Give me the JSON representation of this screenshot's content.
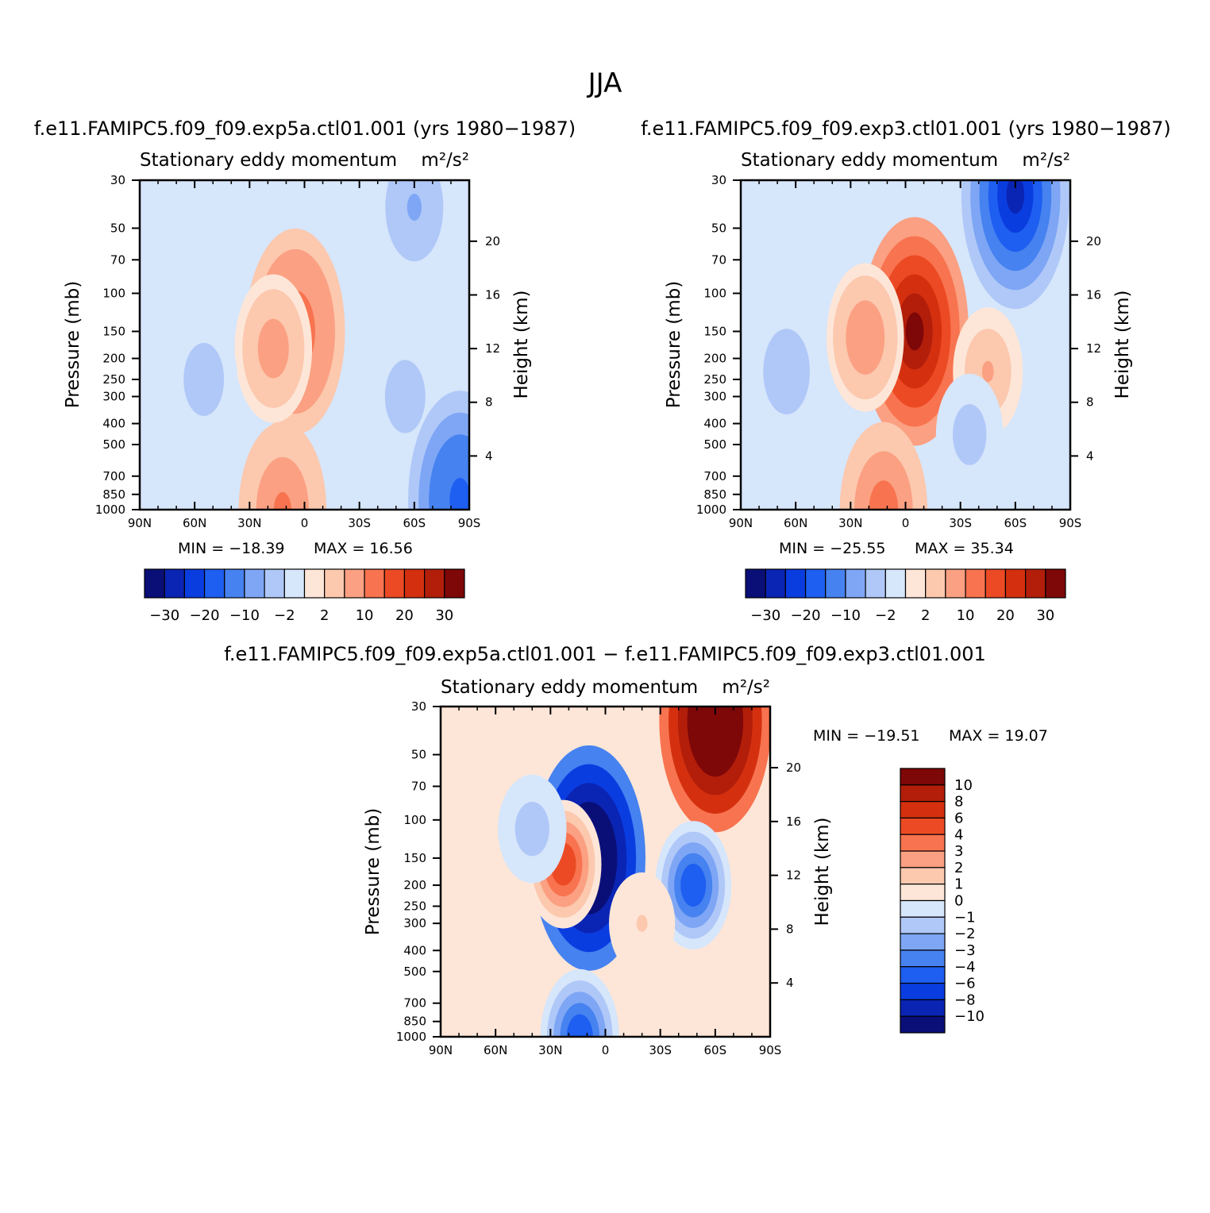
{
  "figure": {
    "title": "JJA",
    "diff_title": "f.e11.FAMIPC5.f09_f09.exp5a.ctl01.001  −  f.e11.FAMIPC5.f09_f09.exp3.ctl01.001"
  },
  "chart_data": [
    {
      "type": "heatmap",
      "case_title": "f.e11.FAMIPC5.f09_f09.exp5a.ctl01.001  (yrs  1980−1987)",
      "title": "Stationary  eddy  momentum",
      "units": "m²/s²",
      "ylabel": "Pressure  (mb)",
      "y2label": "Height  (km)",
      "x_ticks": [
        "90N",
        "60N",
        "30N",
        "0",
        "30S",
        "60S",
        "90S"
      ],
      "y_ticks": [
        "30",
        "50",
        "70",
        "100",
        "150",
        "200",
        "250",
        "300",
        "400",
        "500",
        "700",
        "850",
        "1000"
      ],
      "y2_ticks": [
        "20",
        "16",
        "12",
        "8",
        "4"
      ],
      "y_scale": "log",
      "min_label": "MIN  =  −18.39",
      "max_label": "MAX  =    16.56",
      "min": -18.39,
      "max": 16.56,
      "colorbar_labels": [
        "−30",
        "−20",
        "−10",
        "−2",
        "2",
        "10",
        "20",
        "30"
      ],
      "colorbar_levels": [
        -30,
        -25,
        -20,
        -15,
        -10,
        -5,
        -2,
        0,
        2,
        5,
        10,
        15,
        20,
        25,
        30
      ],
      "colorbar_orientation": "horizontal",
      "features": [
        {
          "lat": 5,
          "p": 150,
          "value": 16.56
        },
        {
          "lat": 17,
          "p": 180,
          "value": 8
        },
        {
          "lat": -60,
          "p": 40,
          "value": -6
        },
        {
          "lat": -55,
          "p": 300,
          "value": -4
        },
        {
          "lat": 55,
          "p": 250,
          "value": -4
        },
        {
          "lat": 12,
          "p": 1000,
          "value": 12
        },
        {
          "lat": -85,
          "p": 900,
          "value": -18.39
        }
      ]
    },
    {
      "type": "heatmap",
      "case_title": "f.e11.FAMIPC5.f09_f09.exp3.ctl01.001  (yrs  1980−1987)",
      "title": "Stationary  eddy  momentum",
      "units": "m²/s²",
      "ylabel": "Pressure  (mb)",
      "y2label": "Height  (km)",
      "x_ticks": [
        "90N",
        "60N",
        "30N",
        "0",
        "30S",
        "60S",
        "90S"
      ],
      "y_ticks": [
        "30",
        "50",
        "70",
        "100",
        "150",
        "200",
        "250",
        "300",
        "400",
        "500",
        "700",
        "850",
        "1000"
      ],
      "y2_ticks": [
        "20",
        "16",
        "12",
        "8",
        "4"
      ],
      "y_scale": "log",
      "min_label": "MIN  =  −25.55",
      "max_label": "MAX  =    35.34",
      "min": -25.55,
      "max": 35.34,
      "colorbar_labels": [
        "−30",
        "−20",
        "−10",
        "−2",
        "2",
        "10",
        "20",
        "30"
      ],
      "colorbar_levels": [
        -30,
        -25,
        -20,
        -15,
        -10,
        -5,
        -2,
        0,
        2,
        5,
        10,
        15,
        20,
        25,
        30
      ],
      "colorbar_orientation": "horizontal",
      "features": [
        {
          "lat": -5,
          "p": 150,
          "value": 35.34
        },
        {
          "lat": -60,
          "p": 35,
          "value": -25.55
        },
        {
          "lat": 22,
          "p": 160,
          "value": 8
        },
        {
          "lat": -45,
          "p": 230,
          "value": 5
        },
        {
          "lat": 65,
          "p": 230,
          "value": -5
        },
        {
          "lat": -35,
          "p": 450,
          "value": -4
        },
        {
          "lat": 12,
          "p": 1000,
          "value": 12
        }
      ]
    },
    {
      "type": "heatmap",
      "title": "Stationary  eddy  momentum",
      "units": "m²/s²",
      "ylabel": "Pressure  (mb)",
      "y2label": "Height  (km)",
      "x_ticks": [
        "90N",
        "60N",
        "30N",
        "0",
        "30S",
        "60S",
        "90S"
      ],
      "y_ticks": [
        "30",
        "50",
        "70",
        "100",
        "150",
        "200",
        "250",
        "300",
        "400",
        "500",
        "700",
        "850",
        "1000"
      ],
      "y2_ticks": [
        "20",
        "16",
        "12",
        "8",
        "4"
      ],
      "y_scale": "log",
      "min_label": "MIN  =  −19.51",
      "max_label": "MAX  =    19.07",
      "min": -19.51,
      "max": 19.07,
      "colorbar_labels": [
        "10",
        "8",
        "6",
        "4",
        "3",
        "2",
        "1",
        "0",
        "−1",
        "−2",
        "−3",
        "−4",
        "−6",
        "−8",
        "−10"
      ],
      "colorbar_levels": [
        10,
        8,
        6,
        4,
        3,
        2,
        1,
        0,
        -1,
        -2,
        -3,
        -4,
        -6,
        -8,
        -10
      ],
      "colorbar_orientation": "vertical",
      "features": [
        {
          "lat": 9,
          "p": 150,
          "value": -19.51
        },
        {
          "lat": -60,
          "p": 35,
          "value": 19.07
        },
        {
          "lat": -48,
          "p": 200,
          "value": -5
        },
        {
          "lat": 23,
          "p": 160,
          "value": 5
        },
        {
          "lat": 40,
          "p": 110,
          "value": -2
        },
        {
          "lat": 14,
          "p": 1000,
          "value": -6
        },
        {
          "lat": -20,
          "p": 300,
          "value": 1
        }
      ]
    }
  ],
  "colors": {
    "scale": [
      "#0a0f78",
      "#0a24b4",
      "#0a3de0",
      "#1e5ef0",
      "#4682f0",
      "#7ea6f5",
      "#b0c8f8",
      "#d6e6fb",
      "#fde6d8",
      "#fcc8ae",
      "#fba082",
      "#f8734f",
      "#ec4a24",
      "#d4300f",
      "#b21e0a",
      "#7e0708"
    ]
  }
}
